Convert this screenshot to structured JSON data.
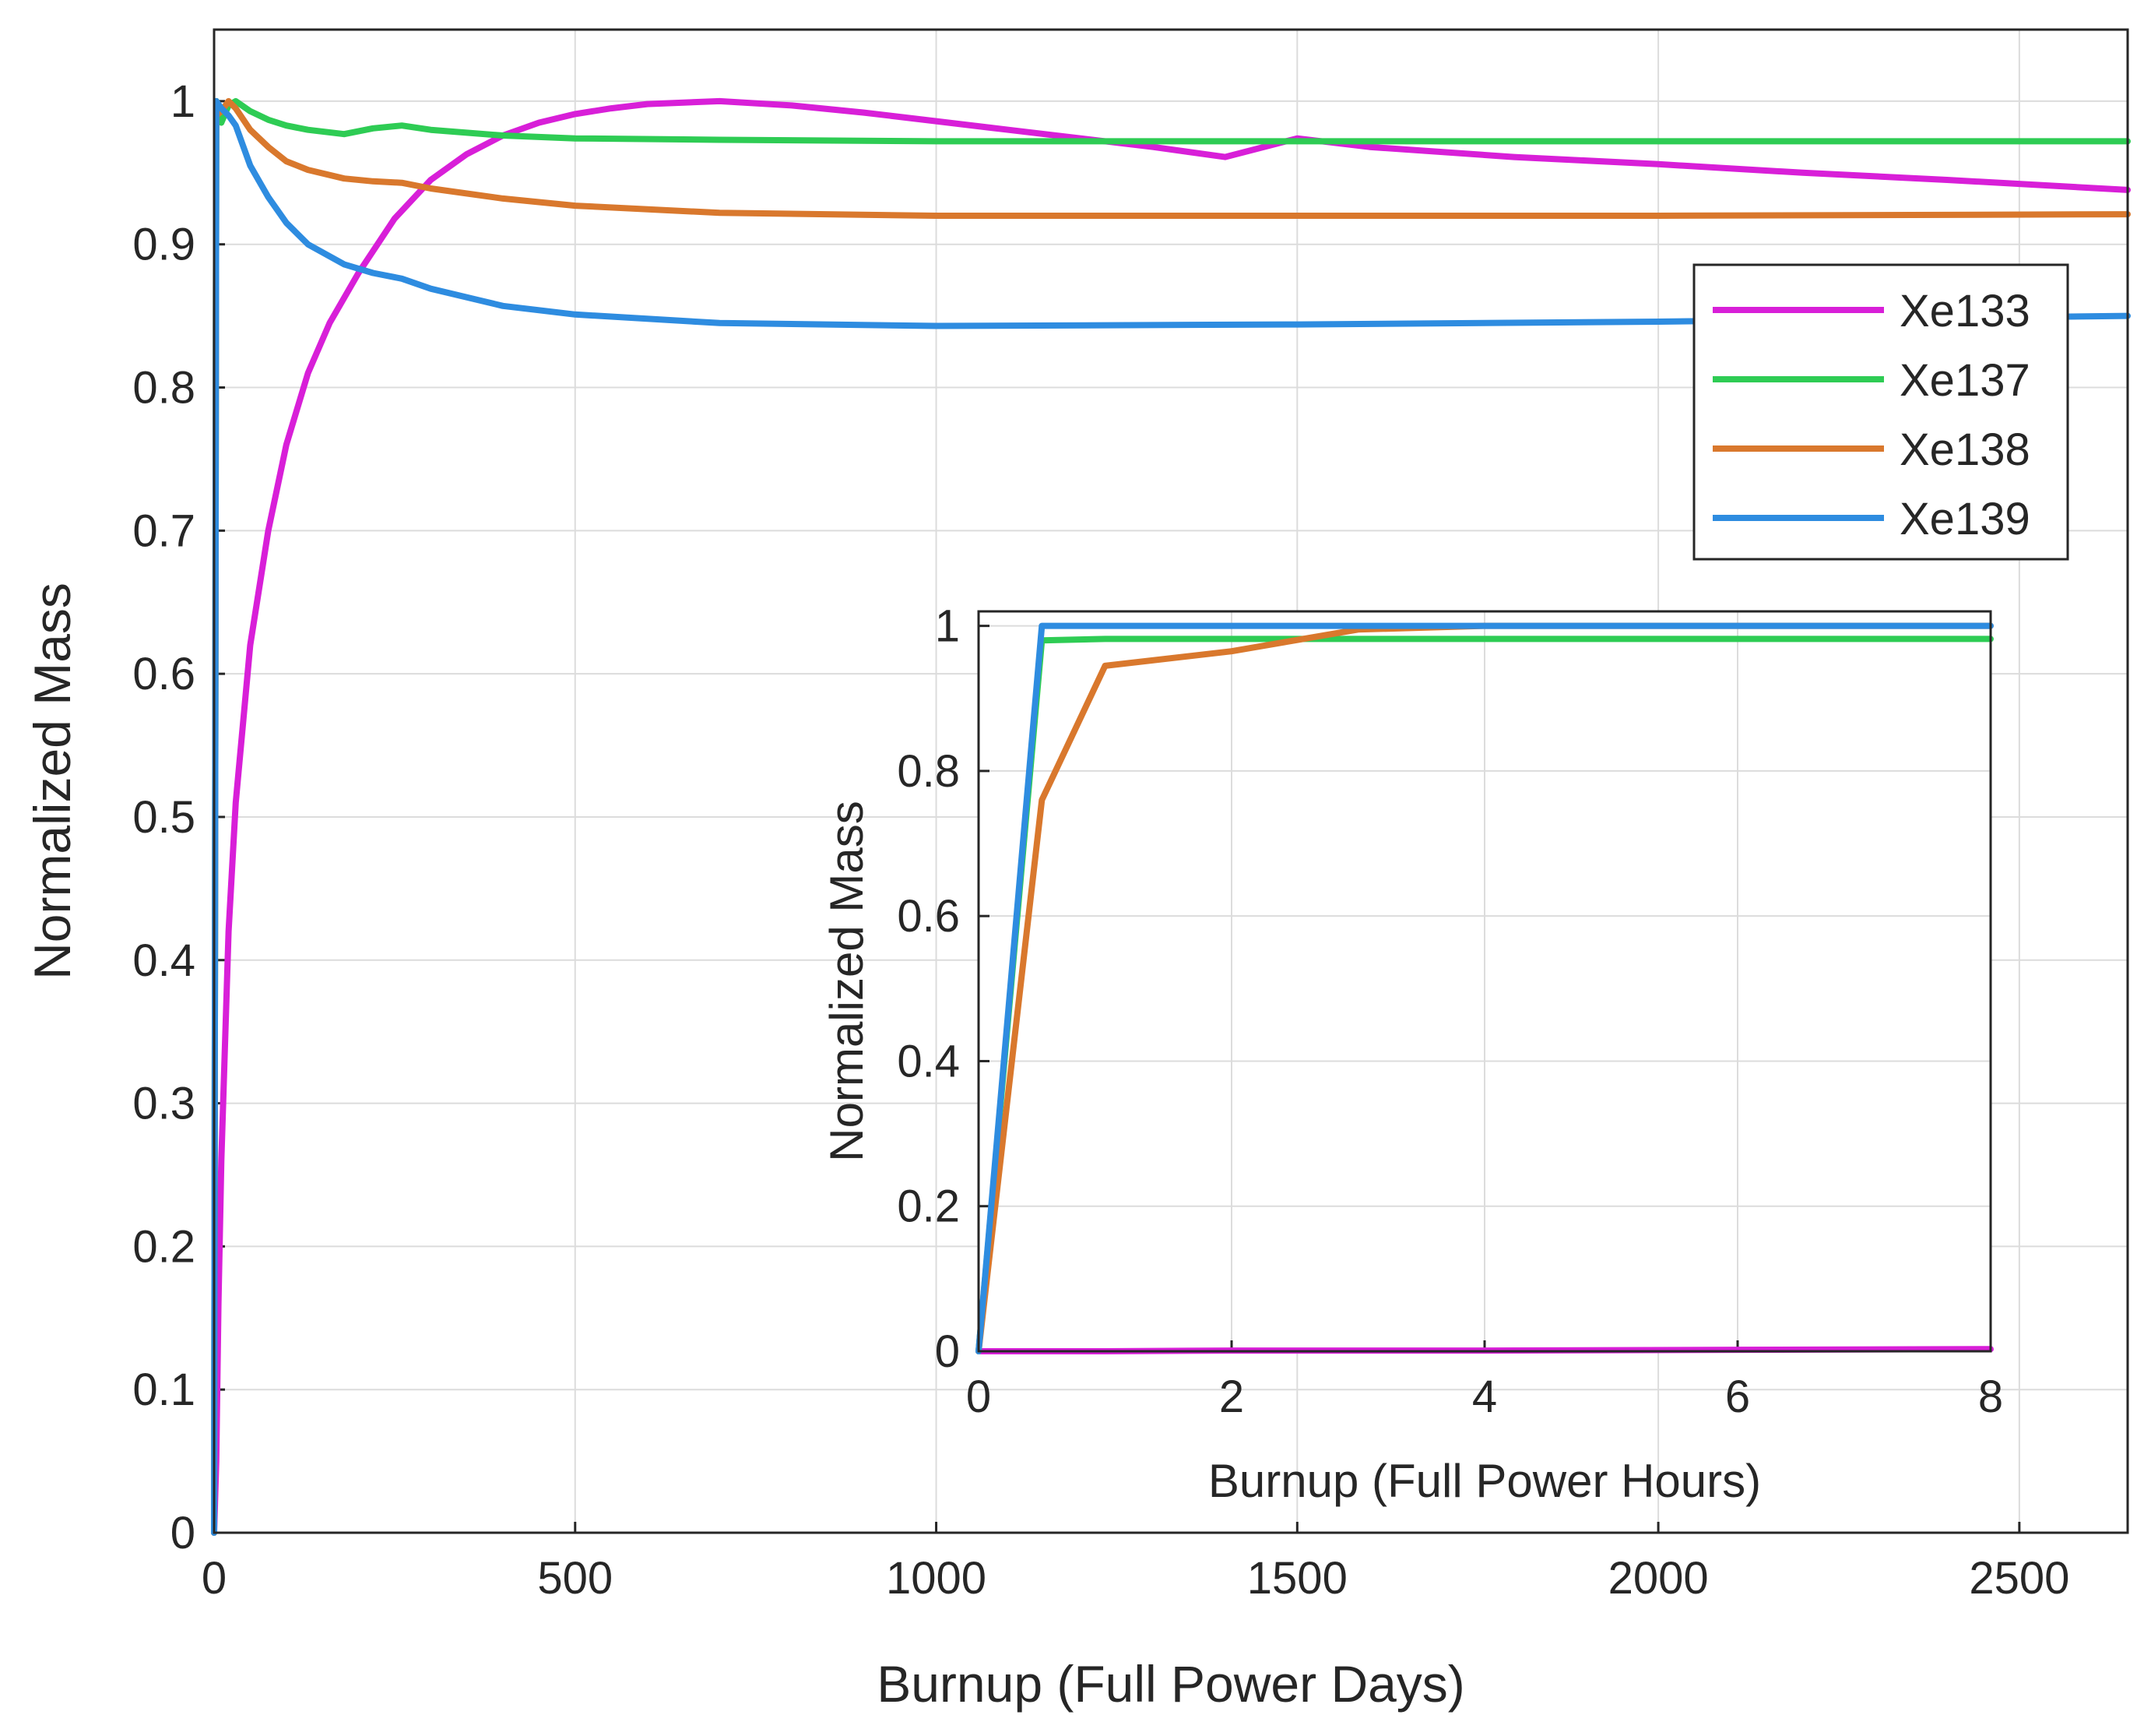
{
  "chart_data": [
    {
      "type": "line",
      "name": "main",
      "xlabel": "Burnup (Full Power Days)",
      "ylabel": "Normalized Mass",
      "xlim": [
        0,
        2650
      ],
      "ylim": [
        0,
        1.05
      ],
      "xticks": [
        0,
        500,
        1000,
        1500,
        2000,
        2500
      ],
      "yticks": [
        0,
        0.1,
        0.2,
        0.3,
        0.4,
        0.5,
        0.6,
        0.7,
        0.8,
        0.9,
        1
      ],
      "grid": true,
      "legend_position": "top-right",
      "series": [
        {
          "name": "Xe133",
          "color": "#d81fd8",
          "x": [
            0,
            3,
            6,
            10,
            20,
            30,
            50,
            75,
            100,
            130,
            160,
            200,
            250,
            300,
            350,
            400,
            450,
            500,
            550,
            600,
            650,
            700,
            800,
            900,
            1000,
            1100,
            1200,
            1300,
            1400,
            1500,
            1600,
            1800,
            2000,
            2200,
            2400,
            2650
          ],
          "y": [
            0,
            0.05,
            0.16,
            0.26,
            0.42,
            0.51,
            0.62,
            0.7,
            0.76,
            0.81,
            0.845,
            0.88,
            0.918,
            0.945,
            0.963,
            0.976,
            0.985,
            0.991,
            0.995,
            0.998,
            0.999,
            1.0,
            0.997,
            0.992,
            0.986,
            0.98,
            0.974,
            0.968,
            0.961,
            0.974,
            0.968,
            0.961,
            0.956,
            0.95,
            0.945,
            0.938
          ]
        },
        {
          "name": "Xe137",
          "color": "#2ecc54",
          "x": [
            0,
            3,
            10,
            20,
            30,
            50,
            75,
            100,
            130,
            180,
            220,
            260,
            300,
            400,
            500,
            700,
            1000,
            1500,
            2000,
            2650
          ],
          "y": [
            0,
            1.0,
            0.985,
            0.997,
            1.0,
            0.993,
            0.987,
            0.983,
            0.98,
            0.977,
            0.981,
            0.983,
            0.98,
            0.976,
            0.974,
            0.973,
            0.972,
            0.972,
            0.972,
            0.972
          ]
        },
        {
          "name": "Xe138",
          "color": "#d9782d",
          "x": [
            0,
            3,
            10,
            20,
            30,
            50,
            75,
            100,
            130,
            180,
            220,
            260,
            300,
            400,
            500,
            700,
            1000,
            1500,
            2000,
            2650
          ],
          "y": [
            0,
            0.99,
            0.993,
            1.0,
            0.995,
            0.98,
            0.968,
            0.958,
            0.952,
            0.946,
            0.944,
            0.943,
            0.939,
            0.932,
            0.927,
            0.922,
            0.92,
            0.92,
            0.92,
            0.921
          ]
        },
        {
          "name": "Xe139",
          "color": "#2e8ce0",
          "x": [
            0,
            3,
            10,
            20,
            30,
            50,
            75,
            100,
            130,
            180,
            220,
            260,
            300,
            400,
            500,
            700,
            1000,
            1500,
            2000,
            2650
          ],
          "y": [
            0,
            1.0,
            0.995,
            0.99,
            0.983,
            0.955,
            0.933,
            0.915,
            0.9,
            0.886,
            0.88,
            0.876,
            0.869,
            0.857,
            0.851,
            0.845,
            0.843,
            0.844,
            0.846,
            0.85
          ]
        }
      ]
    },
    {
      "type": "line",
      "name": "inset",
      "xlabel": "Burnup (Full Power Hours)",
      "ylabel": "Normalized Mass",
      "xlim": [
        0,
        8
      ],
      "ylim": [
        0,
        1.02
      ],
      "xticks": [
        0,
        2,
        4,
        6,
        8
      ],
      "yticks": [
        0,
        0.2,
        0.4,
        0.6,
        0.8,
        1
      ],
      "ytick_labels": [
        "0",
        "0.2",
        "0.4",
        "0.6",
        "0.8",
        "1"
      ],
      "grid": true,
      "series": [
        {
          "name": "Xe133",
          "color": "#d81fd8",
          "x": [
            0,
            0.5,
            1,
            2,
            4,
            6,
            8
          ],
          "y": [
            0,
            0.0,
            0.0,
            0.001,
            0.001,
            0.002,
            0.003
          ]
        },
        {
          "name": "Xe137",
          "color": "#2ecc54",
          "x": [
            0,
            0.5,
            1,
            2,
            4,
            6,
            8
          ],
          "y": [
            0,
            0.98,
            0.982,
            0.982,
            0.982,
            0.982,
            0.982
          ]
        },
        {
          "name": "Xe138",
          "color": "#d9782d",
          "x": [
            0,
            0.5,
            1,
            2,
            3,
            4,
            6,
            8
          ],
          "y": [
            0,
            0.76,
            0.945,
            0.965,
            0.995,
            1.0,
            1.0,
            1.0
          ]
        },
        {
          "name": "Xe139",
          "color": "#2e8ce0",
          "x": [
            0,
            0.5,
            1,
            4,
            8
          ],
          "y": [
            0,
            1.0,
            1.0,
            1.0,
            1.0
          ]
        }
      ]
    }
  ]
}
